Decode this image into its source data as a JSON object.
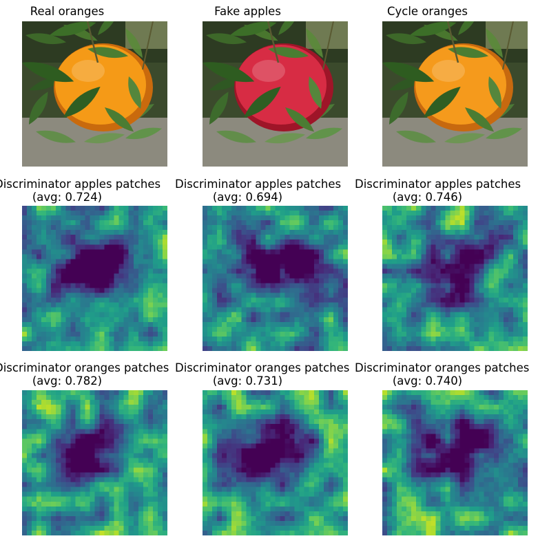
{
  "rows": [
    {
      "kind": "photo",
      "panels": [
        {
          "title": "Real oranges",
          "fruit_color": "#f59a17",
          "fruit_edge": "#c96a0d"
        },
        {
          "title": "Fake apples",
          "fruit_color": "#d72c44",
          "fruit_edge": "#9e1528"
        },
        {
          "title": "Cycle oranges",
          "fruit_color": "#f59a1c",
          "fruit_edge": "#c7690f"
        }
      ]
    },
    {
      "kind": "heatmap",
      "panels": [
        {
          "title_line1": "Discriminator apples patches",
          "title_line2": "(avg: 0.724)",
          "avg": 0.724
        },
        {
          "title_line1": "Discriminator apples patches",
          "title_line2": "(avg: 0.694)",
          "avg": 0.694
        },
        {
          "title_line1": "Discriminator apples patches",
          "title_line2": "(avg: 0.746)",
          "avg": 0.746
        }
      ]
    },
    {
      "kind": "heatmap",
      "panels": [
        {
          "title_line1": "Discriminator oranges patches",
          "title_line2": "(avg: 0.782)",
          "avg": 0.782
        },
        {
          "title_line1": "Discriminator oranges patches",
          "title_line2": "(avg: 0.731)",
          "avg": 0.731
        },
        {
          "title_line1": "Discriminator oranges patches",
          "title_line2": "(avg: 0.740)",
          "avg": 0.74
        }
      ]
    }
  ],
  "colormap": [
    "#440154",
    "#482878",
    "#3e4989",
    "#31688e",
    "#26828e",
    "#1f9e89",
    "#35b779",
    "#6ece58",
    "#b5de2b",
    "#fde725"
  ]
}
